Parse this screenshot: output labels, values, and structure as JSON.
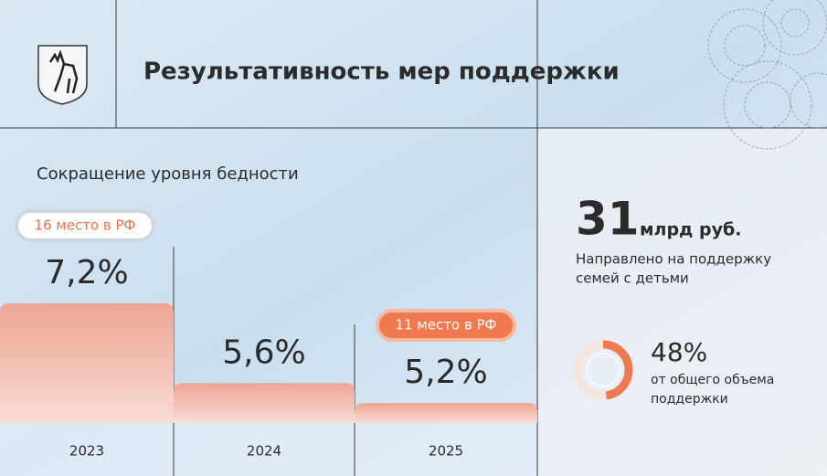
{
  "header": {
    "title": "Результативность мер поддержки"
  },
  "chart_data": {
    "type": "bar",
    "title": "Сокращение уровня бедности",
    "categories": [
      "2023",
      "2024",
      "2025"
    ],
    "values": [
      7.2,
      5.6,
      5.2
    ],
    "value_labels": [
      "7,2%",
      "5,6%",
      "5,2%"
    ],
    "annotations": [
      "16 место в РФ",
      null,
      "11 место в РФ"
    ],
    "color": "#f2a898",
    "ylim": [
      4.8,
      7.6
    ]
  },
  "summary": {
    "amount": 31,
    "unit": "млрд руб.",
    "description": [
      "Направлено на поддержку",
      "семей с детьми"
    ],
    "share": {
      "value": 48,
      "label": "48%",
      "description": [
        "от общего объема",
        "поддержки"
      ]
    }
  }
}
